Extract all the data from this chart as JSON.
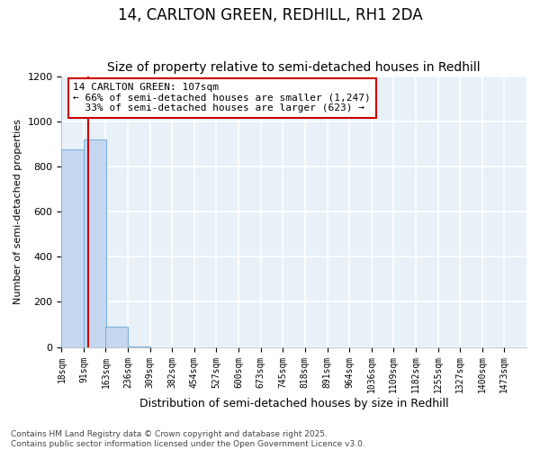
{
  "title1": "14, CARLTON GREEN, REDHILL, RH1 2DA",
  "title2": "Size of property relative to semi-detached houses in Redhill",
  "xlabel": "Distribution of semi-detached houses by size in Redhill",
  "ylabel": "Number of semi-detached properties",
  "bins": [
    18,
    91,
    163,
    236,
    309,
    382,
    454,
    527,
    600,
    673,
    745,
    818,
    891,
    964,
    1036,
    1109,
    1182,
    1255,
    1327,
    1400,
    1473
  ],
  "counts": [
    875,
    920,
    90,
    3,
    0,
    0,
    0,
    0,
    0,
    0,
    0,
    0,
    0,
    0,
    0,
    0,
    0,
    0,
    0,
    0
  ],
  "bar_color": "#c5d8f0",
  "bar_edge_color": "#7fb3e0",
  "property_size": 107,
  "vline_color": "#cc0000",
  "annotation_line1": "14 CARLTON GREEN: 107sqm",
  "annotation_line2": "← 66% of semi-detached houses are smaller (1,247)",
  "annotation_line3": "  33% of semi-detached houses are larger (623) →",
  "annotation_box_color": "#cc0000",
  "ylim": [
    0,
    1200
  ],
  "yticks": [
    0,
    200,
    400,
    600,
    800,
    1000,
    1200
  ],
  "footnote": "Contains HM Land Registry data © Crown copyright and database right 2025.\nContains public sector information licensed under the Open Government Licence v3.0.",
  "background_color": "#e8f0f8",
  "grid_color": "#ffffff",
  "title1_fontsize": 12,
  "title2_fontsize": 10,
  "xlabel_fontsize": 9,
  "ylabel_fontsize": 8,
  "tick_fontsize": 7,
  "annotation_fontsize": 8,
  "footnote_fontsize": 6.5
}
